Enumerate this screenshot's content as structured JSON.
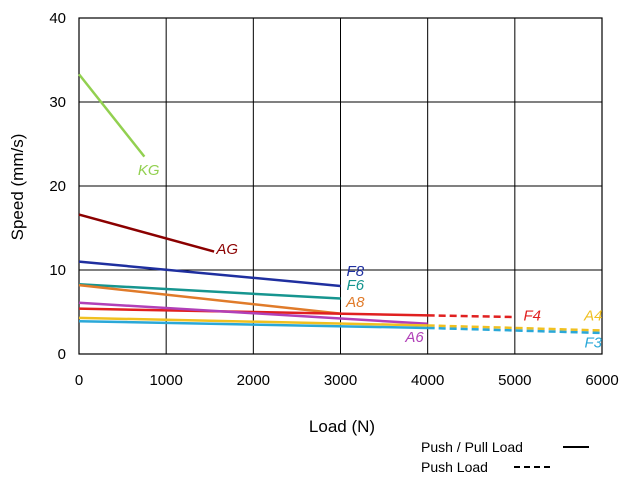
{
  "chart_data": {
    "type": "line",
    "xlabel": "Load (N)",
    "ylabel": "Speed (mm/s)",
    "xlim": [
      0,
      6000
    ],
    "ylim": [
      0,
      40
    ],
    "x_ticks": [
      "0",
      "1000",
      "2000",
      "3000",
      "4000",
      "5000",
      "6000"
    ],
    "y_ticks": [
      "0",
      "10",
      "20",
      "30",
      "40"
    ],
    "grid": true,
    "series": [
      {
        "name": "KG",
        "color": "#92d050",
        "style": "solid",
        "points": [
          [
            0,
            33.3
          ],
          [
            750,
            23.5
          ]
        ],
        "label_at": [
          800,
          21.3
        ]
      },
      {
        "name": "AG",
        "color": "#8b0000",
        "style": "solid",
        "points": [
          [
            0,
            16.6
          ],
          [
            1550,
            12.2
          ]
        ],
        "label_at": [
          1700,
          11.9
        ]
      },
      {
        "name": "F8",
        "color": "#1f2f9f",
        "style": "solid",
        "points": [
          [
            0,
            11.0
          ],
          [
            3000,
            8.1
          ]
        ],
        "label_at": [
          3170,
          9.3
        ]
      },
      {
        "name": "F6",
        "color": "#16958f",
        "style": "solid",
        "points": [
          [
            0,
            8.3
          ],
          [
            3000,
            6.6
          ]
        ],
        "label_at": [
          3170,
          7.6
        ]
      },
      {
        "name": "A8",
        "color": "#e07b2a",
        "style": "solid",
        "points": [
          [
            0,
            8.2
          ],
          [
            3000,
            4.8
          ]
        ],
        "label_at": [
          3170,
          5.6
        ]
      },
      {
        "name": "F4",
        "color": "#e02020",
        "style": "solid",
        "points": [
          [
            0,
            5.4
          ],
          [
            4000,
            4.6
          ]
        ],
        "label_at": [
          5200,
          4.0
        ]
      },
      {
        "name": "F4 push",
        "color": "#e02020",
        "style": "dashed",
        "points": [
          [
            4000,
            4.6
          ],
          [
            5000,
            4.4
          ]
        ]
      },
      {
        "name": "A6",
        "color": "#b140b8",
        "style": "solid",
        "points": [
          [
            0,
            6.1
          ],
          [
            4000,
            3.6
          ]
        ],
        "label_at": [
          3850,
          1.4
        ]
      },
      {
        "name": "A4",
        "color": "#f0c020",
        "style": "solid",
        "points": [
          [
            0,
            4.3
          ],
          [
            4000,
            3.4
          ]
        ],
        "label_at": [
          5900,
          4.0
        ]
      },
      {
        "name": "A4 push",
        "color": "#f0c020",
        "style": "dashed",
        "points": [
          [
            4000,
            3.4
          ],
          [
            6000,
            2.8
          ]
        ]
      },
      {
        "name": "F3",
        "color": "#2aa8d8",
        "style": "solid",
        "points": [
          [
            0,
            3.9
          ],
          [
            4000,
            3.1
          ]
        ],
        "label_at": [
          5900,
          0.8
        ]
      },
      {
        "name": "F3 push",
        "color": "#2aa8d8",
        "style": "dashed",
        "points": [
          [
            4000,
            3.1
          ],
          [
            6000,
            2.5
          ]
        ]
      }
    ],
    "legend": {
      "placement": "bottom-right",
      "items": [
        {
          "label": "Push / Pull Load",
          "style": "solid"
        },
        {
          "label": "Push Load",
          "style": "dashed"
        }
      ]
    }
  }
}
